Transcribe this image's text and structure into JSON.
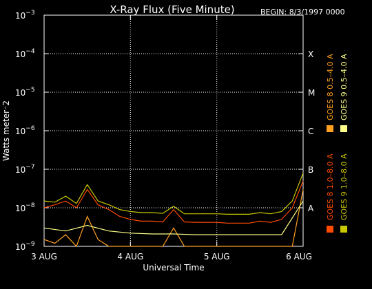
{
  "chart_data": {
    "type": "line",
    "title": "X-Ray Flux (Five Minute)",
    "begin_label": "BEGIN: 8/3/1997 0000",
    "xlabel": "Universal Time",
    "ylabel": "Watts meter⁻2",
    "y_scale": "log",
    "ylim": [
      1e-09,
      0.001
    ],
    "xlim": [
      "1997-08-03 00:00",
      "1997-08-06 00:00"
    ],
    "x_ticks": [
      "3 AUG",
      "4 AUG",
      "5 AUG",
      "6 AUG"
    ],
    "y_ticks": [
      {
        "base": "10",
        "exp": "−3"
      },
      {
        "base": "10",
        "exp": "−4"
      },
      {
        "base": "10",
        "exp": "−5"
      },
      {
        "base": "10",
        "exp": "−6"
      },
      {
        "base": "10",
        "exp": "−7"
      },
      {
        "base": "10",
        "exp": "−8"
      },
      {
        "base": "10",
        "exp": "−9"
      }
    ],
    "flare_classes": [
      "X",
      "M",
      "C",
      "B",
      "A"
    ],
    "grid": true,
    "legend": [
      {
        "text": "GOES 8  1.0–8.0 A",
        "color": "#ff4a00"
      },
      {
        "text": "GOES 8  0.5–4.0 A",
        "color": "#ffa020"
      },
      {
        "text": "GOES 9  1.0–8.0 A",
        "color": "#c8c800"
      },
      {
        "text": "GOES 9  0.5–4.0 A",
        "color": "#ffff88"
      }
    ],
    "series": [
      {
        "color": "#ff4a00",
        "x": [
          "1997-08-03 00:00",
          "1997-08-03 03:00",
          "1997-08-03 06:00",
          "1997-08-03 09:00",
          "1997-08-03 12:00",
          "1997-08-03 15:00",
          "1997-08-03 18:00",
          "1997-08-03 21:00",
          "1997-08-04 00:00",
          "1997-08-04 03:00",
          "1997-08-04 06:00",
          "1997-08-04 09:00",
          "1997-08-04 12:00",
          "1997-08-04 15:00",
          "1997-08-04 18:00",
          "1997-08-04 21:00",
          "1997-08-05 00:00",
          "1997-08-05 03:00",
          "1997-08-05 06:00",
          "1997-08-05 09:00",
          "1997-08-05 12:00",
          "1997-08-05 15:00",
          "1997-08-05 18:00",
          "1997-08-05 21:00",
          "1997-08-06 00:00"
        ],
        "y": [
          1e-08,
          1.2e-08,
          1.5e-08,
          1e-08,
          3e-08,
          1.2e-08,
          9e-09,
          6e-09,
          5e-09,
          4.5e-09,
          4.5e-09,
          4.3e-09,
          9e-09,
          4.3e-09,
          4.2e-09,
          4.2e-09,
          4.2e-09,
          4e-09,
          4e-09,
          4e-09,
          4.5e-09,
          4.2e-09,
          5e-09,
          1e-08,
          5e-08
        ]
      },
      {
        "color": "#ffa020",
        "x": [
          "1997-08-03 00:00",
          "1997-08-03 03:00",
          "1997-08-03 06:00",
          "1997-08-03 09:00",
          "1997-08-03 12:00",
          "1997-08-03 15:00",
          "1997-08-03 18:00",
          "1997-08-03 21:00",
          "1997-08-04 00:00",
          "1997-08-04 06:00",
          "1997-08-04 09:00",
          "1997-08-04 12:00",
          "1997-08-04 15:00",
          "1997-08-04 18:00",
          "1997-08-05 00:00",
          "1997-08-05 06:00",
          "1997-08-05 12:00",
          "1997-08-05 18:00",
          "1997-08-05 21:00",
          "1997-08-06 00:00"
        ],
        "y": [
          1.5e-09,
          1.2e-09,
          2e-09,
          1e-09,
          6e-09,
          1.5e-09,
          1e-09,
          1e-09,
          1e-09,
          1e-09,
          1e-09,
          3e-09,
          1e-09,
          1e-09,
          1e-09,
          1e-09,
          1e-09,
          1e-09,
          1e-09,
          3e-08
        ]
      },
      {
        "color": "#c8c800",
        "x": [
          "1997-08-03 00:00",
          "1997-08-03 03:00",
          "1997-08-03 06:00",
          "1997-08-03 09:00",
          "1997-08-03 12:00",
          "1997-08-03 15:00",
          "1997-08-03 18:00",
          "1997-08-03 21:00",
          "1997-08-04 00:00",
          "1997-08-04 03:00",
          "1997-08-04 06:00",
          "1997-08-04 09:00",
          "1997-08-04 12:00",
          "1997-08-04 15:00",
          "1997-08-04 18:00",
          "1997-08-04 21:00",
          "1997-08-05 00:00",
          "1997-08-05 03:00",
          "1997-08-05 06:00",
          "1997-08-05 09:00",
          "1997-08-05 12:00",
          "1997-08-05 15:00",
          "1997-08-05 18:00",
          "1997-08-05 21:00",
          "1997-08-06 00:00"
        ],
        "y": [
          1.5e-08,
          1.4e-08,
          2e-08,
          1.3e-08,
          4e-08,
          1.5e-08,
          1.2e-08,
          9e-09,
          8e-09,
          7.5e-09,
          7.5e-09,
          7.2e-09,
          1.1e-08,
          7e-09,
          7e-09,
          7e-09,
          7e-09,
          6.8e-09,
          6.8e-09,
          6.8e-09,
          7.5e-09,
          7e-09,
          8e-09,
          1.5e-08,
          8e-08
        ]
      },
      {
        "color": "#ffff88",
        "x": [
          "1997-08-03 00:00",
          "1997-08-03 06:00",
          "1997-08-03 12:00",
          "1997-08-03 18:00",
          "1997-08-04 00:00",
          "1997-08-04 06:00",
          "1997-08-04 12:00",
          "1997-08-04 18:00",
          "1997-08-05 00:00",
          "1997-08-05 06:00",
          "1997-08-05 12:00",
          "1997-08-05 18:00",
          "1997-08-06 00:00"
        ],
        "y": [
          3e-09,
          2.5e-09,
          3.5e-09,
          2.5e-09,
          2.2e-09,
          2.1e-09,
          2.1e-09,
          2e-09,
          2e-09,
          2e-09,
          2e-09,
          2e-09,
          1.5e-08
        ]
      }
    ]
  }
}
